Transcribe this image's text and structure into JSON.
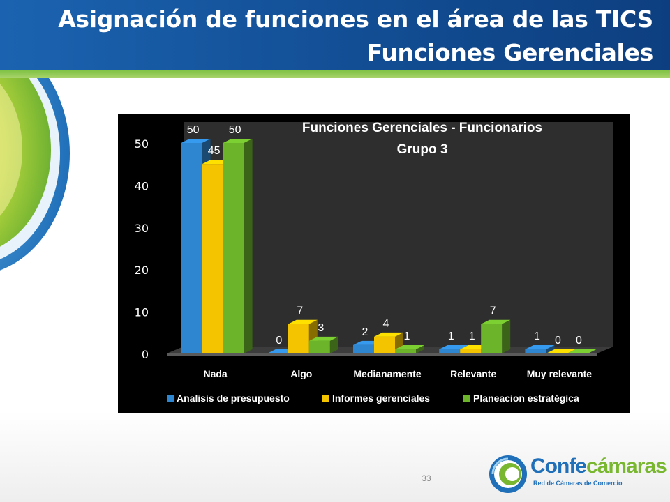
{
  "slide": {
    "title_line1": "Asignación de funciones en el área de las TICS",
    "title_line2": "Funciones Gerenciales",
    "page_number": "33"
  },
  "logo": {
    "word_part1": "Confe",
    "word_part2": "cámaras",
    "tagline": "Red de Cámaras de Comercio"
  },
  "colors": {
    "header_blue": "#124d93",
    "accent_green": "#7cc142",
    "series_blue": "#2f86d0",
    "series_yellow": "#f5c400",
    "series_green": "#6cb52b"
  },
  "chart_data": {
    "type": "bar",
    "title": "Funciones Gerenciales - Funcionarios",
    "subtitle": "Grupo 3",
    "categories": [
      "Nada",
      "Algo",
      "Medianamente",
      "Relevante",
      "Muy relevante"
    ],
    "series": [
      {
        "name": "Analisis de presupuesto",
        "values": [
          50,
          0,
          2,
          1,
          1
        ]
      },
      {
        "name": "Informes gerenciales",
        "values": [
          45,
          7,
          4,
          1,
          0
        ]
      },
      {
        "name": "Planeacion estratégica",
        "values": [
          50,
          3,
          1,
          7,
          0
        ]
      }
    ],
    "yticks": [
      0,
      10,
      20,
      30,
      40,
      50
    ],
    "ylim": [
      0,
      50
    ],
    "grid": false,
    "legend": "bottom",
    "style": "3d-clustered-column",
    "background": "#000000"
  }
}
